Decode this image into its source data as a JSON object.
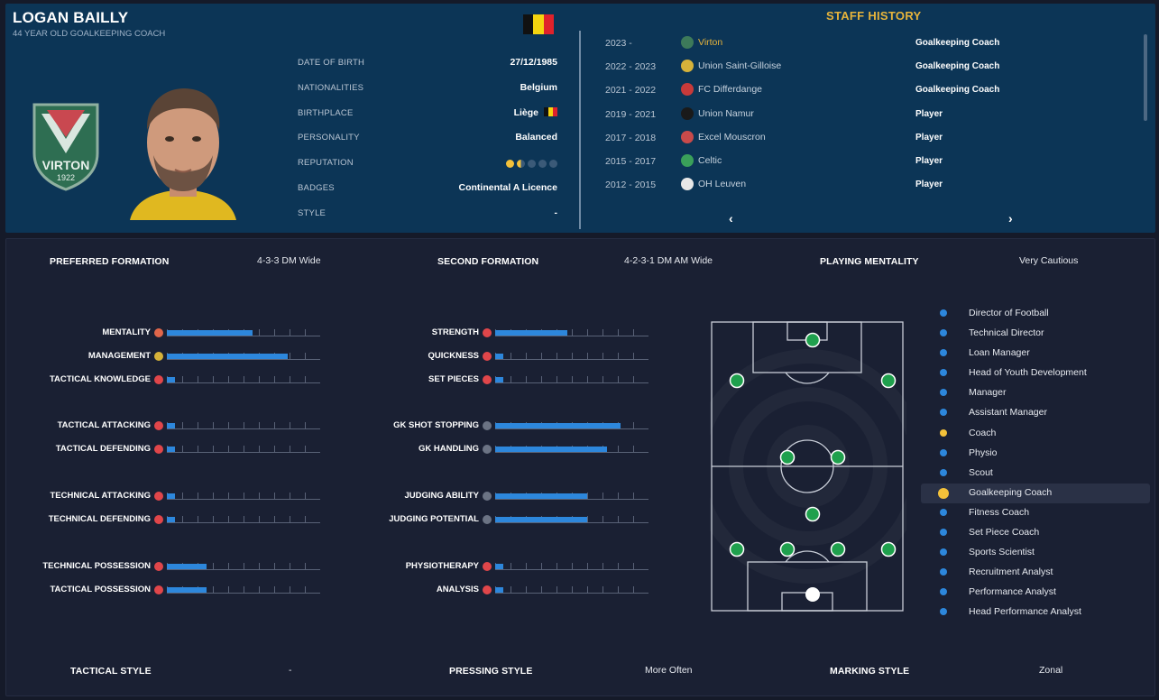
{
  "header": {
    "name": "LOGAN BAILLY",
    "subtitle": "44 YEAR OLD GOALKEEPING COACH"
  },
  "colors": {
    "accent": "#e7b43b",
    "bar": "#2d87dc",
    "panel": "#0c3556",
    "pitch_dot": "#1fa04d"
  },
  "crest": {
    "club_name": "VIRTON",
    "year": "1922"
  },
  "details": [
    {
      "key": "DATE OF BIRTH",
      "value": "27/12/1985"
    },
    {
      "key": "NATIONALITIES",
      "value": "Belgium"
    },
    {
      "key": "BIRTHPLACE",
      "value": "Liège"
    },
    {
      "key": "PERSONALITY",
      "value": "Balanced"
    },
    {
      "key": "REPUTATION",
      "value": ""
    },
    {
      "key": "BADGES",
      "value": "Continental A Licence"
    },
    {
      "key": "STYLE",
      "value": "-"
    }
  ],
  "reputation_stars": 1.5,
  "staff_history": {
    "title": "STAFF HISTORY",
    "rows": [
      {
        "years": "2023 -",
        "club": "Virton",
        "role": "Goalkeeping Coach",
        "icon_color": "#3d7a5a",
        "current": true
      },
      {
        "years": "2022 - 2023",
        "club": "Union Saint-Gilloise",
        "role": "Goalkeeping Coach",
        "icon_color": "#d6b23a",
        "current": false
      },
      {
        "years": "2021 - 2022",
        "club": "FC Differdange",
        "role": "Goalkeeping Coach",
        "icon_color": "#c83a3a",
        "current": false
      },
      {
        "years": "2019 - 2021",
        "club": "Union Namur",
        "role": "Player",
        "icon_color": "#1a1a1a",
        "current": false
      },
      {
        "years": "2017 - 2018",
        "club": "Excel Mouscron",
        "role": "Player",
        "icon_color": "#c94a4a",
        "current": false
      },
      {
        "years": "2015 - 2017",
        "club": "Celtic",
        "role": "Player",
        "icon_color": "#3aa05a",
        "current": false
      },
      {
        "years": "2012 - 2015",
        "club": "OH Leuven",
        "role": "Player",
        "icon_color": "#e8e8e8",
        "current": false
      }
    ],
    "prev": "‹",
    "next": "›"
  },
  "tactics": {
    "preferred_formation_label": "PREFERRED FORMATION",
    "preferred_formation": "4-3-3 DM Wide",
    "second_formation_label": "SECOND FORMATION",
    "second_formation": "4-2-3-1 DM AM Wide",
    "playing_mentality_label": "PLAYING MENTALITY",
    "playing_mentality": "Very Cautious",
    "tactical_style_label": "TACTICAL STYLE",
    "tactical_style": "-",
    "pressing_style_label": "PRESSING STYLE",
    "pressing_style": "More Often",
    "marking_style_label": "MARKING STYLE",
    "marking_style": "Zonal"
  },
  "attributes_left": [
    {
      "label": "MENTALITY",
      "level": 0.56,
      "icon": "#e0664a"
    },
    {
      "label": "MANAGEMENT",
      "level": 0.79,
      "icon": "#d6b23a"
    },
    {
      "label": "TACTICAL KNOWLEDGE",
      "level": 0.05,
      "icon": "#e0464a"
    },
    {
      "label": "TACTICAL ATTACKING",
      "level": 0.05,
      "icon": "#e0464a"
    },
    {
      "label": "TACTICAL DEFENDING",
      "level": 0.05,
      "icon": "#e0464a"
    },
    {
      "label": "TECHNICAL ATTACKING",
      "level": 0.05,
      "icon": "#e0464a"
    },
    {
      "label": "TECHNICAL DEFENDING",
      "level": 0.05,
      "icon": "#e0464a"
    },
    {
      "label": "TECHNICAL POSSESSION",
      "level": 0.26,
      "icon": "#e0464a"
    },
    {
      "label": "TACTICAL POSSESSION",
      "level": 0.26,
      "icon": "#e0464a"
    }
  ],
  "attributes_right": [
    {
      "label": "STRENGTH",
      "level": 0.47,
      "icon": "#e0464a"
    },
    {
      "label": "QUICKNESS",
      "level": 0.05,
      "icon": "#e0464a"
    },
    {
      "label": "SET PIECES",
      "level": 0.05,
      "icon": "#e0464a"
    },
    {
      "label": "GK SHOT STOPPING",
      "level": 0.82,
      "icon": "#6b7384"
    },
    {
      "label": "GK HANDLING",
      "level": 0.73,
      "icon": "#6b7384"
    },
    {
      "label": "JUDGING ABILITY",
      "level": 0.6,
      "icon": "#6b7384"
    },
    {
      "label": "JUDGING POTENTIAL",
      "level": 0.6,
      "icon": "#6b7384"
    },
    {
      "label": "PHYSIOTHERAPY",
      "level": 0.05,
      "icon": "#e0464a"
    },
    {
      "label": "ANALYSIS",
      "level": 0.05,
      "icon": "#e0464a"
    }
  ],
  "roles": [
    {
      "label": "Director of Football",
      "color": "#2d87dc",
      "active": false
    },
    {
      "label": "Technical Director",
      "color": "#2d87dc",
      "active": false
    },
    {
      "label": "Loan Manager",
      "color": "#2d87dc",
      "active": false
    },
    {
      "label": "Head of Youth Development",
      "color": "#2d87dc",
      "active": false
    },
    {
      "label": "Manager",
      "color": "#2d87dc",
      "active": false
    },
    {
      "label": "Assistant Manager",
      "color": "#2d87dc",
      "active": false
    },
    {
      "label": "Coach",
      "color": "#f3c13a",
      "active": false
    },
    {
      "label": "Physio",
      "color": "#2d87dc",
      "active": false
    },
    {
      "label": "Scout",
      "color": "#2d87dc",
      "active": false
    },
    {
      "label": "Goalkeeping Coach",
      "color": "#f3c13a",
      "active": true
    },
    {
      "label": "Fitness Coach",
      "color": "#2d87dc",
      "active": false
    },
    {
      "label": "Set Piece Coach",
      "color": "#2d87dc",
      "active": false
    },
    {
      "label": "Sports Scientist",
      "color": "#2d87dc",
      "active": false
    },
    {
      "label": "Recruitment Analyst",
      "color": "#2d87dc",
      "active": false
    },
    {
      "label": "Performance Analyst",
      "color": "#2d87dc",
      "active": false
    },
    {
      "label": "Head Performance Analyst",
      "color": "#2d87dc",
      "active": false
    }
  ]
}
